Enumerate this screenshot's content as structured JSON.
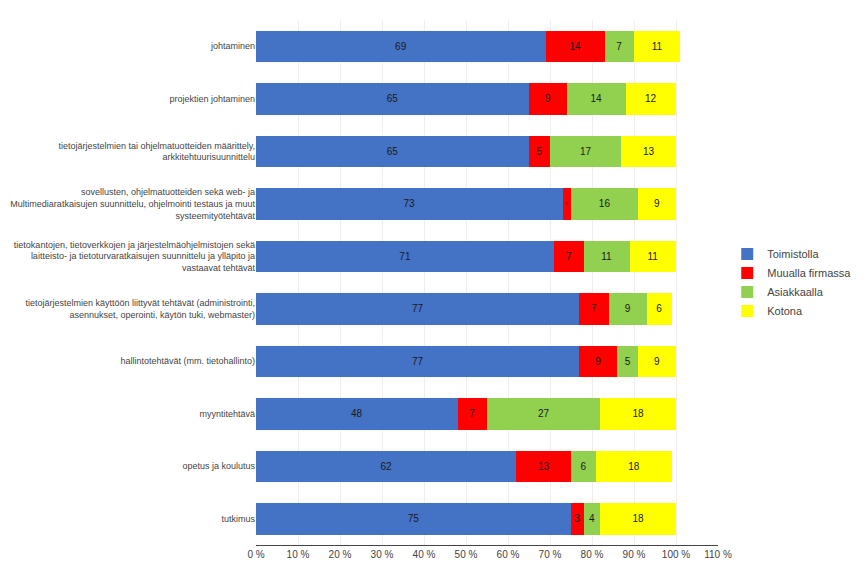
{
  "chart_data": {
    "type": "bar",
    "orientation": "horizontal",
    "stacked": true,
    "data_labels": true,
    "grid": true,
    "legend": "right",
    "categories": [
      "johtaminen",
      "projektien johtaminen",
      "tietojärjestelmien tai ohjelmatuotteiden määrittely,\narkkitehtuurisuunnittelu",
      "sovellusten, ohjelmatuotteiden sekä web- ja\nMultimediaratkaisujen suunnittelu, ohjelmointi testaus ja muut\nsysteemityötehtävät",
      "tietokantojen, tietoverkkojen ja järjestelmäohjelmistojen sekä\nlaitteisto- ja tietoturvaratkaisujen suunnittelu ja ylläpito ja\nvastaavat tehtävät",
      "tietojärjestelmien käyttöön liittyvät tehtävät (administrointi,\nasennukset, operointi, käytön tuki, webmaster)",
      "hallintotehtävät (mm. tietohallinto)",
      "myyntitehtävä",
      "opetus ja koulutus",
      "tutkimus"
    ],
    "series": [
      {
        "name": "Toimistolla",
        "color": "#4472C4",
        "values": [
          69,
          65,
          65,
          73,
          71,
          77,
          77,
          48,
          62,
          75
        ]
      },
      {
        "name": "Muualla firmassa",
        "color": "#FF0000",
        "values": [
          14,
          9,
          5,
          2,
          7,
          7,
          9,
          7,
          13,
          3
        ]
      },
      {
        "name": "Asiakkaalla",
        "color": "#92D050",
        "values": [
          7,
          14,
          17,
          16,
          11,
          9,
          5,
          27,
          6,
          4
        ]
      },
      {
        "name": "Kotona",
        "color": "#FFFF00",
        "values": [
          11,
          12,
          13,
          9,
          11,
          6,
          9,
          18,
          18,
          18
        ]
      }
    ],
    "xlim": [
      0,
      110
    ],
    "xticks": [
      {
        "value": 0,
        "label": "0 %"
      },
      {
        "value": 10,
        "label": "10 %"
      },
      {
        "value": 20,
        "label": "20 %"
      },
      {
        "value": 30,
        "label": "30 %"
      },
      {
        "value": 40,
        "label": "40 %"
      },
      {
        "value": 50,
        "label": "50 %"
      },
      {
        "value": 60,
        "label": "60 %"
      },
      {
        "value": 70,
        "label": "70 %"
      },
      {
        "value": 80,
        "label": "80 %"
      },
      {
        "value": 90,
        "label": "90 %"
      },
      {
        "value": 100,
        "label": "100 %"
      },
      {
        "value": 110,
        "label": "110 %"
      }
    ]
  }
}
